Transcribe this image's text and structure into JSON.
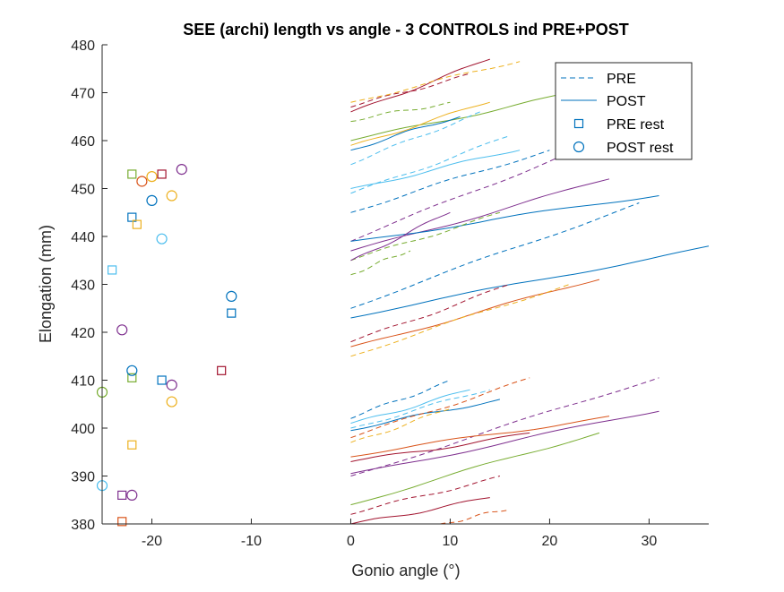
{
  "chart_data": {
    "type": "line",
    "title": "SEE (archi) length vs angle - 3 CONTROLS ind PRE+POST",
    "xlabel": "Gonio angle (°)",
    "ylabel": "Elongation (mm)",
    "xlim": [
      -25,
      36
    ],
    "ylim": [
      380,
      480
    ],
    "xticks": [
      -20,
      -10,
      0,
      10,
      20,
      30
    ],
    "yticks": [
      380,
      390,
      400,
      410,
      420,
      430,
      440,
      450,
      460,
      470,
      480
    ],
    "grid": false,
    "legend_position": "top-right",
    "legend": [
      {
        "label": "PRE",
        "style": "dashed-line",
        "color": "#0072BD"
      },
      {
        "label": "POST",
        "style": "solid-line",
        "color": "#0072BD"
      },
      {
        "label": "PRE rest",
        "style": "square",
        "color": "#0072BD"
      },
      {
        "label": "POST rest",
        "style": "circle",
        "color": "#0072BD"
      }
    ],
    "series": [
      {
        "color": "#A2142F",
        "dashed": true,
        "x0": 0,
        "y0": 467,
        "x1": 12,
        "y1": 474
      },
      {
        "color": "#A2142F",
        "dashed": false,
        "x0": 0,
        "y0": 466,
        "x1": 14,
        "y1": 477
      },
      {
        "color": "#EDB120",
        "dashed": true,
        "x0": 0,
        "y0": 468,
        "x1": 17,
        "y1": 476.5
      },
      {
        "color": "#77AC30",
        "dashed": true,
        "x0": 0,
        "y0": 464,
        "x1": 10,
        "y1": 468
      },
      {
        "color": "#77AC30",
        "dashed": false,
        "x0": 0,
        "y0": 460,
        "x1": 22,
        "y1": 470
      },
      {
        "color": "#EDB120",
        "dashed": false,
        "x0": 0,
        "y0": 459,
        "x1": 14,
        "y1": 468
      },
      {
        "color": "#0072BD",
        "dashed": false,
        "x0": 0,
        "y0": 458,
        "x1": 11,
        "y1": 465
      },
      {
        "color": "#4DBEEE",
        "dashed": true,
        "x0": 0,
        "y0": 455,
        "x1": 13,
        "y1": 466
      },
      {
        "color": "#4DBEEE",
        "dashed": true,
        "x0": 0,
        "y0": 449,
        "x1": 16,
        "y1": 461
      },
      {
        "color": "#4DBEEE",
        "dashed": false,
        "x0": 0,
        "y0": 450,
        "x1": 17,
        "y1": 458
      },
      {
        "color": "#0072BD",
        "dashed": true,
        "x0": 0,
        "y0": 445,
        "x1": 20,
        "y1": 458
      },
      {
        "color": "#7E2F8E",
        "dashed": true,
        "x0": 0,
        "y0": 439,
        "x1": 26,
        "y1": 461
      },
      {
        "color": "#7E2F8E",
        "dashed": false,
        "x0": 0,
        "y0": 437,
        "x1": 26,
        "y1": 452
      },
      {
        "color": "#0072BD",
        "dashed": false,
        "x0": 0,
        "y0": 439,
        "x1": 31,
        "y1": 448.5
      },
      {
        "color": "#0072BD",
        "dashed": true,
        "x0": 0,
        "y0": 425,
        "x1": 29,
        "y1": 447
      },
      {
        "color": "#77AC30",
        "dashed": true,
        "x0": 0,
        "y0": 435,
        "x1": 15,
        "y1": 445
      },
      {
        "color": "#7E2F8E",
        "dashed": false,
        "x0": 0,
        "y0": 435,
        "x1": 10,
        "y1": 445
      },
      {
        "color": "#77AC30",
        "dashed": true,
        "x0": 0,
        "y0": 432,
        "x1": 6,
        "y1": 437
      },
      {
        "color": "#0072BD",
        "dashed": false,
        "x0": 0,
        "y0": 423,
        "x1": 36,
        "y1": 438
      },
      {
        "color": "#A2142F",
        "dashed": true,
        "x0": 0,
        "y0": 418,
        "x1": 16,
        "y1": 430
      },
      {
        "color": "#D95319",
        "dashed": false,
        "x0": 0,
        "y0": 417,
        "x1": 25,
        "y1": 431
      },
      {
        "color": "#EDB120",
        "dashed": true,
        "x0": 0,
        "y0": 415,
        "x1": 22,
        "y1": 430
      },
      {
        "color": "#0072BD",
        "dashed": true,
        "x0": 0,
        "y0": 402,
        "x1": 10,
        "y1": 410
      },
      {
        "color": "#4DBEEE",
        "dashed": false,
        "x0": 0,
        "y0": 401,
        "x1": 12,
        "y1": 408
      },
      {
        "color": "#4DBEEE",
        "dashed": true,
        "x0": 0,
        "y0": 400,
        "x1": 14,
        "y1": 408
      },
      {
        "color": "#0072BD",
        "dashed": false,
        "x0": 0,
        "y0": 399.5,
        "x1": 15,
        "y1": 406
      },
      {
        "color": "#D95319",
        "dashed": true,
        "x0": 0,
        "y0": 398,
        "x1": 18,
        "y1": 410.5
      },
      {
        "color": "#EDB120",
        "dashed": true,
        "x0": 0,
        "y0": 397,
        "x1": 10,
        "y1": 404
      },
      {
        "color": "#7E2F8E",
        "dashed": true,
        "x0": 0,
        "y0": 390,
        "x1": 31,
        "y1": 410.5
      },
      {
        "color": "#D95319",
        "dashed": false,
        "x0": 0,
        "y0": 394,
        "x1": 26,
        "y1": 402.5
      },
      {
        "color": "#A2142F",
        "dashed": false,
        "x0": 0,
        "y0": 393,
        "x1": 18,
        "y1": 399
      },
      {
        "color": "#7E2F8E",
        "dashed": false,
        "x0": 0,
        "y0": 390.5,
        "x1": 31,
        "y1": 403.5
      },
      {
        "color": "#77AC30",
        "dashed": false,
        "x0": 0,
        "y0": 384,
        "x1": 25,
        "y1": 399
      },
      {
        "color": "#A2142F",
        "dashed": true,
        "x0": 0,
        "y0": 382,
        "x1": 15,
        "y1": 390
      },
      {
        "color": "#A2142F",
        "dashed": false,
        "x0": 0,
        "y0": 380,
        "x1": 14,
        "y1": 385.5
      },
      {
        "color": "#D95319",
        "dashed": true,
        "x0": 9,
        "y0": 380,
        "x1": 16,
        "y1": 383
      }
    ],
    "rest_points": [
      {
        "marker": "square",
        "color": "#77AC30",
        "x": -22,
        "y": 453
      },
      {
        "marker": "square",
        "color": "#A2142F",
        "x": -19,
        "y": 453
      },
      {
        "marker": "square",
        "color": "#0072BD",
        "x": -22,
        "y": 444
      },
      {
        "marker": "square",
        "color": "#EDB120",
        "x": -21.5,
        "y": 442.5
      },
      {
        "marker": "square",
        "color": "#4DBEEE",
        "x": -24,
        "y": 433
      },
      {
        "marker": "square",
        "color": "#0072BD",
        "x": -12,
        "y": 424
      },
      {
        "marker": "square",
        "color": "#A2142F",
        "x": -13,
        "y": 412
      },
      {
        "marker": "square",
        "color": "#77AC30",
        "x": -22,
        "y": 410.5
      },
      {
        "marker": "square",
        "color": "#0072BD",
        "x": -19,
        "y": 410
      },
      {
        "marker": "square",
        "color": "#EDB120",
        "x": -22,
        "y": 396.5
      },
      {
        "marker": "square",
        "color": "#7E2F8E",
        "x": -23,
        "y": 386
      },
      {
        "marker": "square",
        "color": "#D95319",
        "x": -23,
        "y": 380.5
      },
      {
        "marker": "circle",
        "color": "#7E2F8E",
        "x": -17,
        "y": 454
      },
      {
        "marker": "circle",
        "color": "#EDB120",
        "x": -20,
        "y": 452.5
      },
      {
        "marker": "circle",
        "color": "#D95319",
        "x": -21,
        "y": 451.5
      },
      {
        "marker": "circle",
        "color": "#EDB120",
        "x": -18,
        "y": 448.5
      },
      {
        "marker": "circle",
        "color": "#0072BD",
        "x": -20,
        "y": 447.5
      },
      {
        "marker": "circle",
        "color": "#4DBEEE",
        "x": -19,
        "y": 439.5
      },
      {
        "marker": "circle",
        "color": "#0072BD",
        "x": -12,
        "y": 427.5
      },
      {
        "marker": "circle",
        "color": "#7E2F8E",
        "x": -23,
        "y": 420.5
      },
      {
        "marker": "circle",
        "color": "#0072BD",
        "x": -22,
        "y": 412
      },
      {
        "marker": "circle",
        "color": "#7E2F8E",
        "x": -18,
        "y": 409
      },
      {
        "marker": "circle",
        "color": "#77AC30",
        "x": -25,
        "y": 407.5
      },
      {
        "marker": "circle",
        "color": "#EDB120",
        "x": -18,
        "y": 405.5
      },
      {
        "marker": "circle",
        "color": "#4DBEEE",
        "x": -25,
        "y": 388
      },
      {
        "marker": "circle",
        "color": "#7E2F8E",
        "x": -22,
        "y": 386
      }
    ]
  }
}
